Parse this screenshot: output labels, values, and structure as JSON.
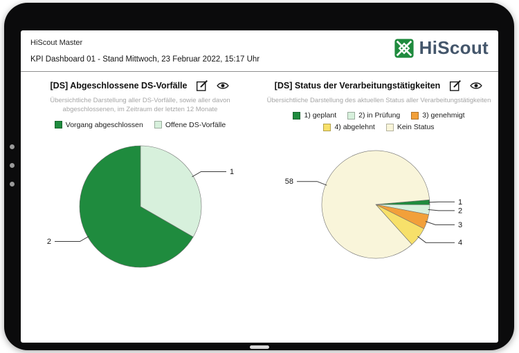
{
  "header": {
    "app_title": "HiScout Master",
    "dashboard_title": "KPI Dashboard 01 - Stand Mittwoch, 23 Februar 2022, 15:17 Uhr",
    "logo_text": "HiScout"
  },
  "icons": {
    "logo": "hiscout-logo",
    "panel_actions": [
      "edit-icon",
      "eye-icon"
    ]
  },
  "colors": {
    "brand_green": "#1f8b3e",
    "mint_green": "#d7f0dc",
    "orange": "#f2a03a",
    "yellow": "#f7e06a",
    "cream": "#f9f5da",
    "logo_text": "#44566b"
  },
  "chart_data": [
    {
      "type": "pie",
      "title": "[DS] Abgeschlossene DS-Vorfälle",
      "subtitle": "Übersichtliche Darstellung aller DS-Vorfälle, sowie aller davon abgeschlossenen, im Zeitraum der letzten 12 Monate",
      "legend_position": "top",
      "start_angle_deg": -90,
      "direction": "clockwise",
      "slices": [
        {
          "label": "Offene DS-Vorfälle",
          "value": 1,
          "color": "#d7f0dc",
          "callout": "1"
        },
        {
          "label": "Vorgang abgeschlossen",
          "value": 2,
          "color": "#1f8b3e",
          "callout": "2"
        }
      ],
      "legend": [
        {
          "label": "Vorgang abgeschlossen",
          "color": "#1f8b3e"
        },
        {
          "label": "Offene DS-Vorfälle",
          "color": "#d7f0dc"
        }
      ]
    },
    {
      "type": "pie",
      "title": "[DS] Status der Verarbeitungstätigkeiten",
      "subtitle": "Übersichtliche Darstellung des aktuellen Status aller Verarbeitungstätigkeiten",
      "legend_position": "top",
      "start_angle_deg": -5,
      "direction": "clockwise",
      "slices": [
        {
          "label": "1) geplant",
          "value": 1,
          "color": "#1f8b3e",
          "callout": "1"
        },
        {
          "label": "2) in Prüfung",
          "value": 2,
          "color": "#d7f0dc",
          "callout": "2"
        },
        {
          "label": "3) genehmigt",
          "value": 3,
          "color": "#f2a03a",
          "callout": "3"
        },
        {
          "label": "4) abgelehnt",
          "value": 4,
          "color": "#f7e06a",
          "callout": "4"
        },
        {
          "label": "Kein Status",
          "value": 58,
          "color": "#f9f5da",
          "callout": "58"
        }
      ],
      "legend": [
        {
          "label": "1) geplant",
          "color": "#1f8b3e"
        },
        {
          "label": "2) in Prüfung",
          "color": "#d7f0dc"
        },
        {
          "label": "3) genehmigt",
          "color": "#f2a03a"
        },
        {
          "label": "4) abgelehnt",
          "color": "#f7e06a"
        },
        {
          "label": "Kein Status",
          "color": "#f9f5da"
        }
      ]
    }
  ]
}
